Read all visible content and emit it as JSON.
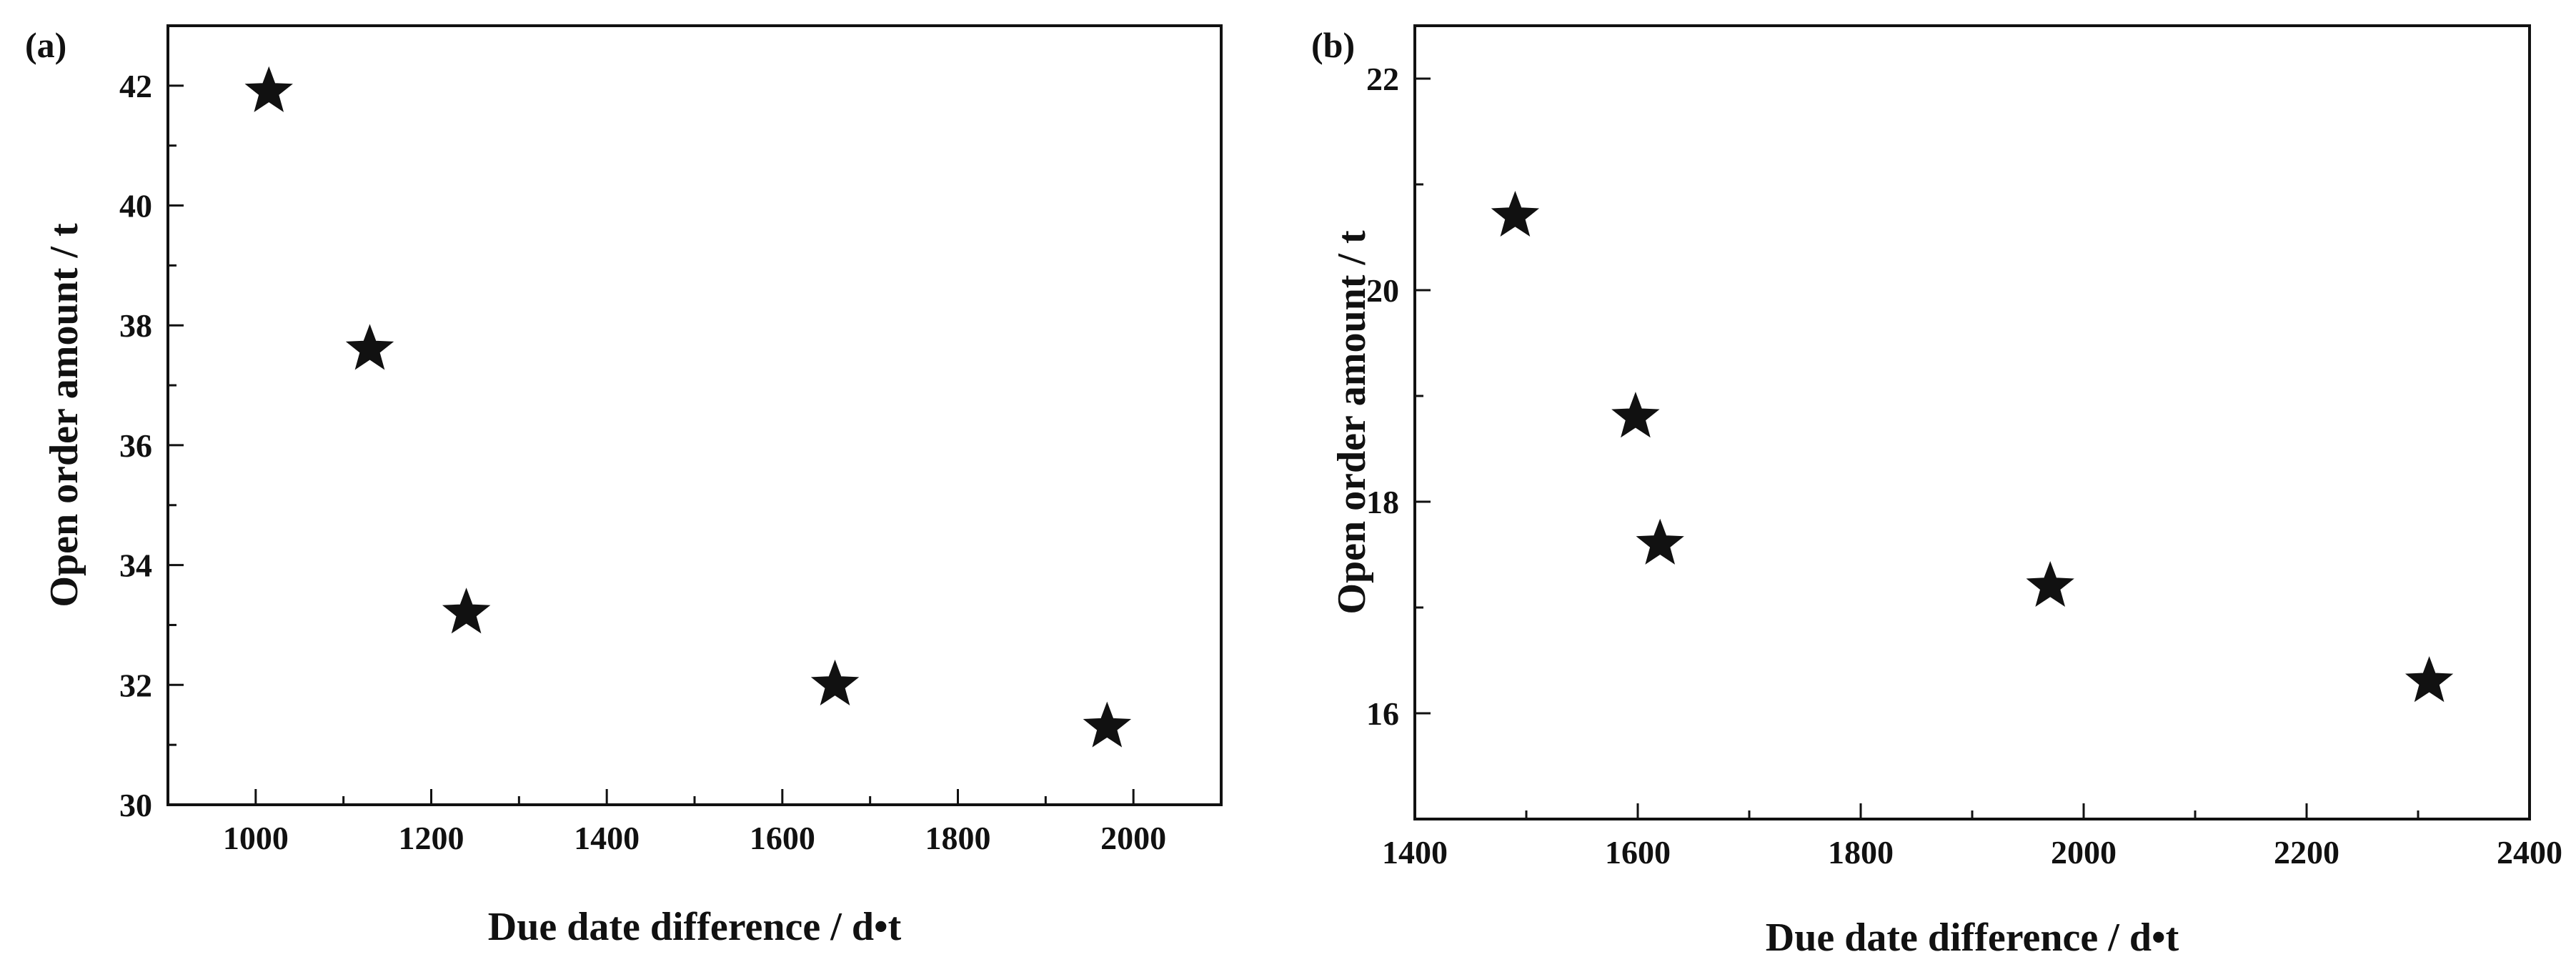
{
  "chart_data": [
    {
      "type": "scatter",
      "panel_label": "(a)",
      "xlabel": "Due date difference / d•t",
      "ylabel": "Open order amount / t",
      "xlim": [
        900,
        2100
      ],
      "ylim": [
        30,
        43
      ],
      "xticks": [
        1000,
        1200,
        1400,
        1600,
        1800,
        2000
      ],
      "yticks": [
        30,
        32,
        34,
        36,
        38,
        40,
        42
      ],
      "marker": "star",
      "marker_color": "#111111",
      "grid": false,
      "points": [
        {
          "x": 1015,
          "y": 41.9
        },
        {
          "x": 1130,
          "y": 37.6
        },
        {
          "x": 1240,
          "y": 33.2
        },
        {
          "x": 1660,
          "y": 32.0
        },
        {
          "x": 1970,
          "y": 31.3
        }
      ]
    },
    {
      "type": "scatter",
      "panel_label": "(b)",
      "xlabel": "Due date difference / d•t",
      "ylabel": "Open order amount / t",
      "xlim": [
        1400,
        2400
      ],
      "ylim": [
        15,
        22.5
      ],
      "xticks": [
        1400,
        1600,
        1800,
        2000,
        2200,
        2400
      ],
      "yticks": [
        16,
        18,
        20,
        22
      ],
      "marker": "star",
      "marker_color": "#111111",
      "grid": false,
      "points": [
        {
          "x": 1490,
          "y": 20.7
        },
        {
          "x": 1598,
          "y": 18.8
        },
        {
          "x": 1620,
          "y": 17.6
        },
        {
          "x": 1970,
          "y": 17.2
        },
        {
          "x": 2310,
          "y": 16.3
        }
      ]
    }
  ]
}
